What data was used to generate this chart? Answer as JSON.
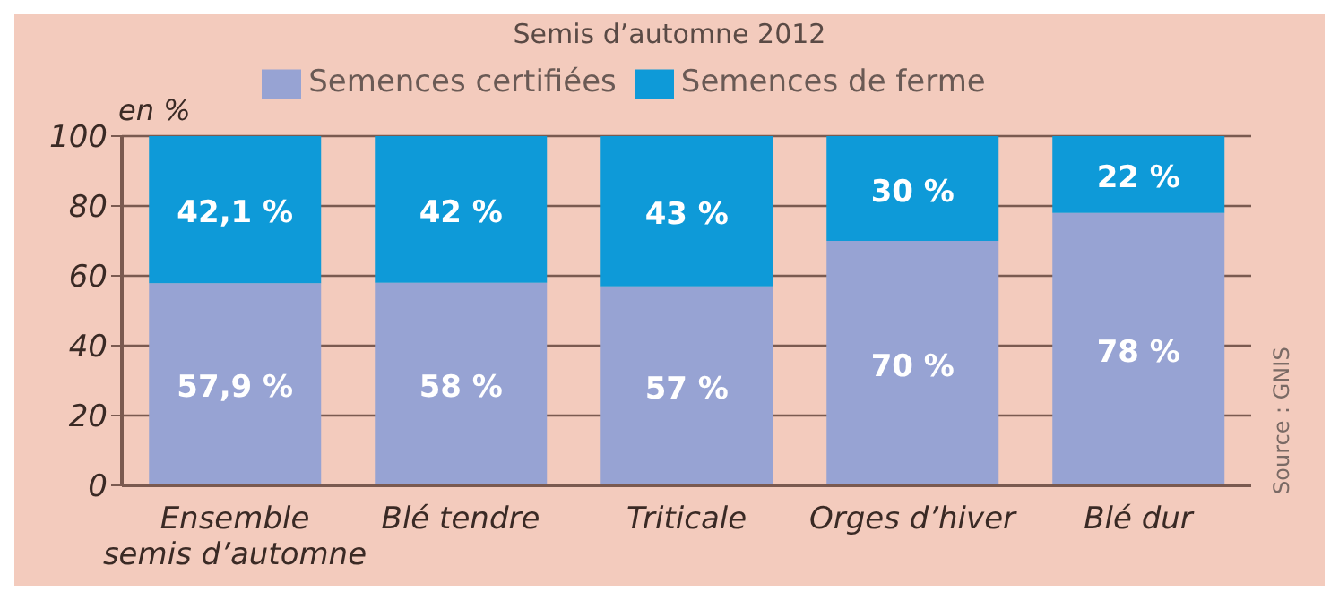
{
  "chart_data": {
    "type": "bar",
    "title": "Semis d’automne 2012",
    "ylabel": "en %",
    "stacked": true,
    "categories": [
      "Ensemble semis d’automne",
      "Blé tendre",
      "Triticale",
      "Orges d’hiver",
      "Blé dur"
    ],
    "series": [
      {
        "name": "Semences certifiées",
        "color": "#97a3d3",
        "values": [
          57.9,
          58,
          57,
          70,
          78
        ],
        "value_labels": [
          "57,9 %",
          "58 %",
          "57 %",
          "70 %",
          "78 %"
        ]
      },
      {
        "name": "Semences de ferme",
        "color": "#0e9ad8",
        "values": [
          42.1,
          42,
          43,
          30,
          22
        ],
        "value_labels": [
          "42,1 %",
          "42 %",
          "43 %",
          "30 %",
          "22 %"
        ]
      }
    ],
    "ylim": [
      0,
      100
    ],
    "yticks": [
      0,
      20,
      40,
      60,
      80,
      100
    ],
    "grid": "y",
    "legend": "top",
    "annotations": [
      "Source : GNIS"
    ]
  }
}
